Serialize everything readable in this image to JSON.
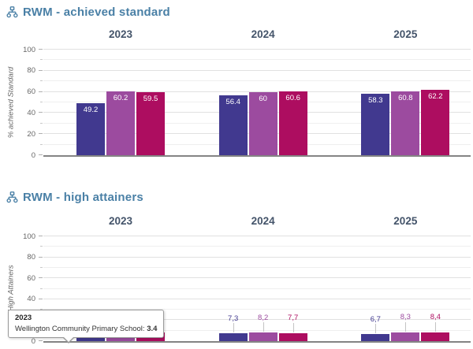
{
  "colors": {
    "series": [
      "#41398f",
      "#9c4b9f",
      "#ad0d60"
    ],
    "title_text": "#4a80a6",
    "year_label": "#44546a",
    "axis_text": "#666666",
    "gridline": "#e1e1e1",
    "axis_line": "#848484"
  },
  "icons": {
    "chart_title_icon": "sitemap-icon"
  },
  "tooltip": {
    "category": "2023",
    "series": "Wellington Community Primary School",
    "separator": ": ",
    "value": "3.4"
  },
  "chart_data": [
    {
      "type": "bar",
      "title": "RWM - achieved standard",
      "ylabel": "% achieved Standard",
      "ylim": [
        0,
        100
      ],
      "yticks": [
        0,
        20,
        40,
        60,
        80,
        100
      ],
      "gridlines": "horizontal every 10, light gray",
      "legend": "none",
      "categories": [
        "2023",
        "2024",
        "2025"
      ],
      "value_label_style": "inside-top-white",
      "series": [
        {
          "name": "Wellington Community Primary School",
          "color": "#41398f",
          "values": [
            49.2,
            56.4,
            58.3
          ],
          "labels": [
            "49.2",
            "56.4",
            "58.3"
          ]
        },
        {
          "name": "",
          "color": "#9c4b9f",
          "values": [
            60.2,
            60,
            60.8
          ],
          "labels": [
            "60.2",
            "60",
            "60.8"
          ]
        },
        {
          "name": "",
          "color": "#ad0d60",
          "values": [
            59.5,
            60.6,
            62.2
          ],
          "labels": [
            "59.5",
            "60.6",
            "62.2"
          ]
        }
      ]
    },
    {
      "type": "bar",
      "title": "RWM - high attainers",
      "ylabel": "High Attainers",
      "ylim": [
        0,
        100
      ],
      "yticks": [
        0,
        20,
        40,
        60,
        80,
        100
      ],
      "gridlines": "horizontal every 10, light gray",
      "legend": "none",
      "categories": [
        "2023",
        "2024",
        "2025"
      ],
      "value_label_style": "above-colored",
      "series": [
        {
          "name": "Wellington Community Primary School",
          "color": "#41398f",
          "values": [
            3.4,
            7.3,
            6.7
          ],
          "labels": [
            "3,4",
            "7,3",
            "6,7"
          ]
        },
        {
          "name": "",
          "color": "#9c4b9f",
          "values": [
            8.9,
            8.2,
            8.3
          ],
          "labels": [
            "8,9",
            "8,2",
            "8,3"
          ]
        },
        {
          "name": "",
          "color": "#ad0d60",
          "values": [
            8.2,
            7.7,
            8.4
          ],
          "labels": [
            "8,2",
            "7,7",
            "8,4"
          ]
        }
      ]
    }
  ]
}
